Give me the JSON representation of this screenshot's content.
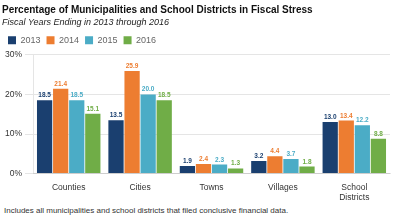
{
  "chart_data": {
    "type": "bar",
    "title": "Percentage of Municipalities and School Districts in Fiscal Stress",
    "subtitle": "Fiscal Years Ending in 2013 through 2016",
    "footnote": "Includes all municipalities and school districts that filed conclusive financial data.",
    "categories": [
      "Counties",
      "Cities",
      "Towns",
      "Villages",
      "School\nDistricts"
    ],
    "series": [
      {
        "name": "2013",
        "color": "#1a3f6f",
        "values": [
          18.5,
          13.5,
          1.9,
          3.2,
          13.0
        ],
        "value_labels": [
          "18.5",
          "13.5",
          "1.9",
          "3.2",
          "13.0"
        ]
      },
      {
        "name": "2014",
        "color": "#ed7d31",
        "values": [
          21.4,
          25.9,
          2.4,
          4.4,
          13.4
        ],
        "value_labels": [
          "21.4",
          "25.9",
          "2.4",
          "4.4",
          "13.4"
        ]
      },
      {
        "name": "2015",
        "color": "#4bacc6",
        "values": [
          18.5,
          20.0,
          2.3,
          3.7,
          12.2
        ],
        "value_labels": [
          "18.5",
          "20.0",
          "2.3",
          "3.7",
          "12.2"
        ]
      },
      {
        "name": "2016",
        "color": "#70ad47",
        "values": [
          15.1,
          18.5,
          1.3,
          1.8,
          8.8
        ],
        "value_labels": [
          "15.1",
          "18.5",
          "1.3",
          "1.8",
          "8.8"
        ]
      }
    ],
    "ylim": [
      0,
      30
    ],
    "yticks": [
      {
        "value": 0,
        "label": "0%"
      },
      {
        "value": 10,
        "label": "10%"
      },
      {
        "value": 20,
        "label": "20%"
      },
      {
        "value": 30,
        "label": "30%"
      }
    ],
    "grid": true,
    "legend": "upper left",
    "data_labels": true
  }
}
